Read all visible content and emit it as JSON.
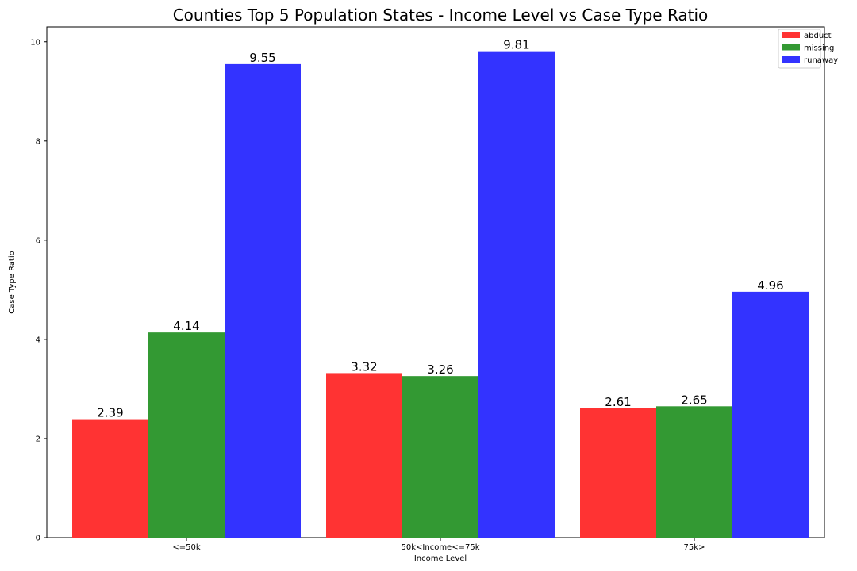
{
  "chart_data": {
    "type": "bar",
    "title": "Counties Top 5 Population States - Income Level vs Case Type Ratio",
    "xlabel": "Income Level",
    "ylabel": "Case Type Ratio",
    "categories": [
      "<=50k",
      "50k<Income<=75k",
      "75k>"
    ],
    "series": [
      {
        "name": "abduct",
        "color": "#ff3333",
        "values": [
          2.39,
          3.32,
          2.61
        ]
      },
      {
        "name": "missing",
        "color": "#339933",
        "values": [
          4.14,
          3.26,
          2.65
        ]
      },
      {
        "name": "runaway",
        "color": "#3333ff",
        "values": [
          9.55,
          9.81,
          4.96
        ]
      }
    ],
    "ylim": [
      0,
      10.3
    ],
    "yticks": [
      0,
      2,
      4,
      6,
      8,
      10
    ],
    "grid": false,
    "legend_position": "top-right"
  }
}
